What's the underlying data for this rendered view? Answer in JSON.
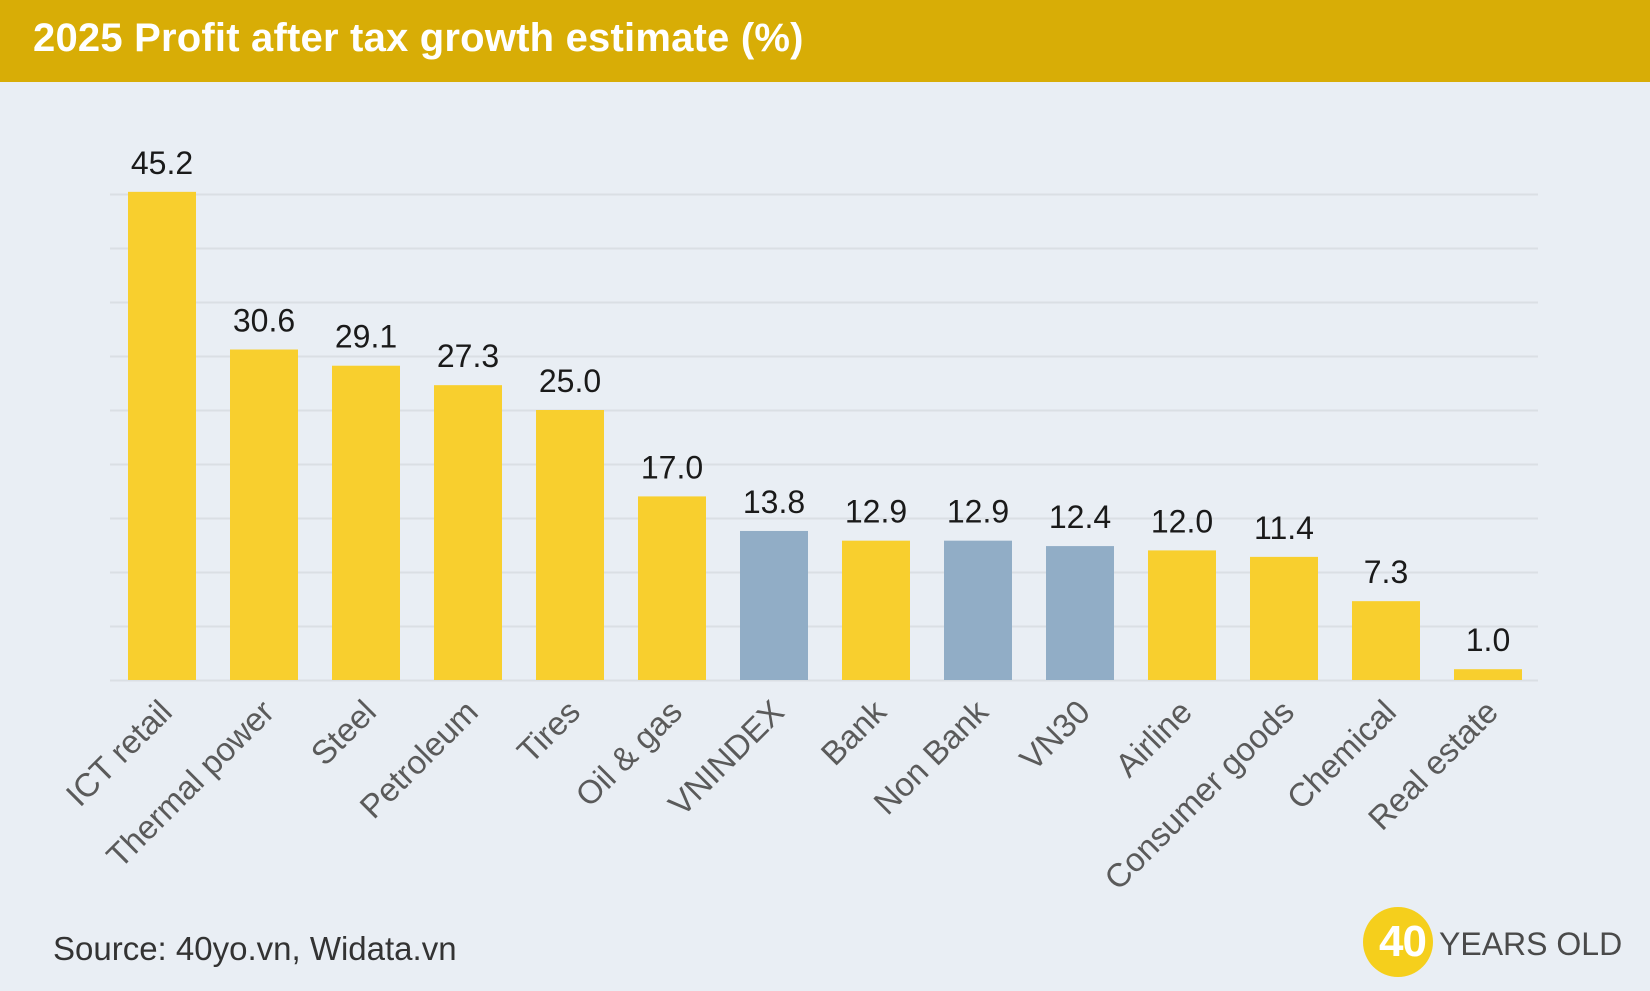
{
  "header": {
    "title": "2025 Profit after tax growth estimate (%)"
  },
  "source": "Source: 40yo.vn, Widata.vn",
  "logo": {
    "number": "40",
    "text": "YEARS OLD"
  },
  "colors": {
    "header": "#d8ad06",
    "background": "#e9eef4",
    "bar_sector": "#f8cf2e",
    "bar_index": "#91adc6",
    "gridline": "#dadfe4"
  },
  "chart_data": {
    "type": "bar",
    "title": "2025 Profit after tax growth estimate (%)",
    "categories": [
      "ICT retail",
      "Thermal power",
      "Steel",
      "Petroleum",
      "Tires",
      "Oil & gas",
      "VNINDEX",
      "Bank",
      "Non Bank",
      "VN30",
      "Airline",
      "Consumer goods",
      "Chemical",
      "Real estate"
    ],
    "values": [
      45.2,
      30.6,
      29.1,
      27.3,
      25.0,
      17.0,
      13.8,
      12.9,
      12.9,
      12.4,
      12.0,
      11.4,
      7.3,
      1.0
    ],
    "value_labels": [
      "45.2",
      "30.6",
      "29.1",
      "27.3",
      "25.0",
      "17.0",
      "13.8",
      "12.9",
      "12.9",
      "12.4",
      "12.0",
      "11.4",
      "7.3",
      "1.0"
    ],
    "bar_kind": [
      "sector",
      "sector",
      "sector",
      "sector",
      "sector",
      "sector",
      "index",
      "sector",
      "index",
      "index",
      "sector",
      "sector",
      "sector",
      "sector"
    ],
    "ylim": [
      0,
      50
    ],
    "grid": true,
    "grid_step": 5,
    "data_labels": true,
    "x_tick_rotation": -45
  }
}
